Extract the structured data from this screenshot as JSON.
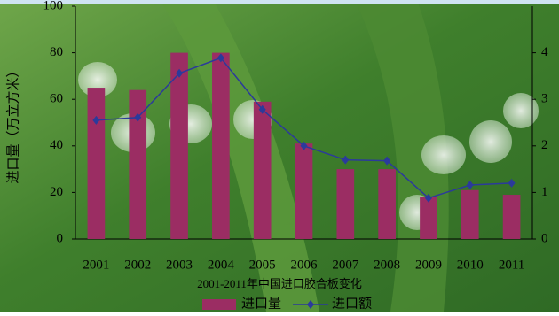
{
  "chart_data": {
    "type": "bar",
    "y_label": "进口量（万立方米）",
    "caption": "2001-2011年中国进口胶合板变化",
    "categories": [
      "2001",
      "2002",
      "2003",
      "2004",
      "2005",
      "2006",
      "2007",
      "2008",
      "2009",
      "2010",
      "2011"
    ],
    "series": [
      {
        "name": "进口量",
        "type": "bar",
        "color": "#9b2d63",
        "values": [
          65,
          64,
          80,
          80,
          59,
          41,
          30,
          30,
          18,
          21,
          19
        ]
      },
      {
        "name": "进口额",
        "type": "line",
        "axis": "y2",
        "color": "#2b3a9b",
        "values": [
          2.55,
          2.61,
          3.56,
          3.89,
          2.78,
          2.0,
          1.7,
          1.68,
          0.88,
          1.16,
          1.2
        ]
      }
    ],
    "ylim": [
      0,
      100
    ],
    "yticks": [
      0,
      20,
      40,
      60,
      80,
      100
    ],
    "y2lim": [
      0,
      5
    ],
    "y2ticks": [
      0,
      1,
      2,
      3,
      4
    ]
  }
}
